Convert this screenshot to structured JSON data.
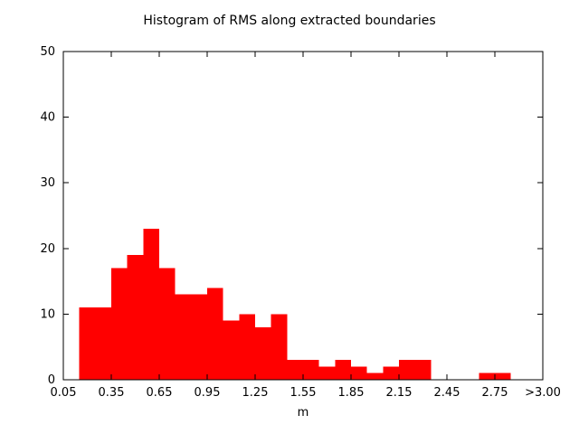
{
  "page": {
    "background": "#ffffff"
  },
  "chart_data": {
    "type": "bar",
    "style": "histogram",
    "title": "Histogram of RMS along extracted boundaries",
    "xlabel": "m",
    "ylabel": "",
    "xlim": [
      0.05,
      3.05
    ],
    "ylim": [
      0,
      50
    ],
    "grid": false,
    "legend": "none",
    "bar_color": "#ff0000",
    "axis_color": "#000000",
    "text_color": "#000000",
    "bin_width": 0.1,
    "bin_starts": [
      0.15,
      0.25,
      0.35,
      0.45,
      0.55,
      0.65,
      0.75,
      0.85,
      0.95,
      1.05,
      1.15,
      1.25,
      1.35,
      1.45,
      1.55,
      1.65,
      1.75,
      1.85,
      1.95,
      2.05,
      2.15,
      2.25,
      2.35,
      2.45,
      2.55,
      2.65,
      2.75
    ],
    "counts": [
      11,
      11,
      17,
      19,
      23,
      17,
      13,
      13,
      14,
      9,
      10,
      8,
      10,
      3,
      3,
      2,
      3,
      2,
      1,
      2,
      3,
      3,
      0,
      0,
      0,
      1,
      1
    ],
    "xticks": [
      {
        "value": 0.05,
        "label": "0.05"
      },
      {
        "value": 0.35,
        "label": "0.35"
      },
      {
        "value": 0.65,
        "label": "0.65"
      },
      {
        "value": 0.95,
        "label": "0.95"
      },
      {
        "value": 1.25,
        "label": "1.25"
      },
      {
        "value": 1.55,
        "label": "1.55"
      },
      {
        "value": 1.85,
        "label": "1.85"
      },
      {
        "value": 2.15,
        "label": "2.15"
      },
      {
        "value": 2.45,
        "label": "2.45"
      },
      {
        "value": 2.75,
        "label": "2.75"
      },
      {
        "value": 3.05,
        "label": ">3.00"
      }
    ],
    "yticks": [
      {
        "value": 0,
        "label": "0"
      },
      {
        "value": 10,
        "label": "10"
      },
      {
        "value": 20,
        "label": "20"
      },
      {
        "value": 30,
        "label": "30"
      },
      {
        "value": 40,
        "label": "40"
      },
      {
        "value": 50,
        "label": "50"
      }
    ]
  }
}
